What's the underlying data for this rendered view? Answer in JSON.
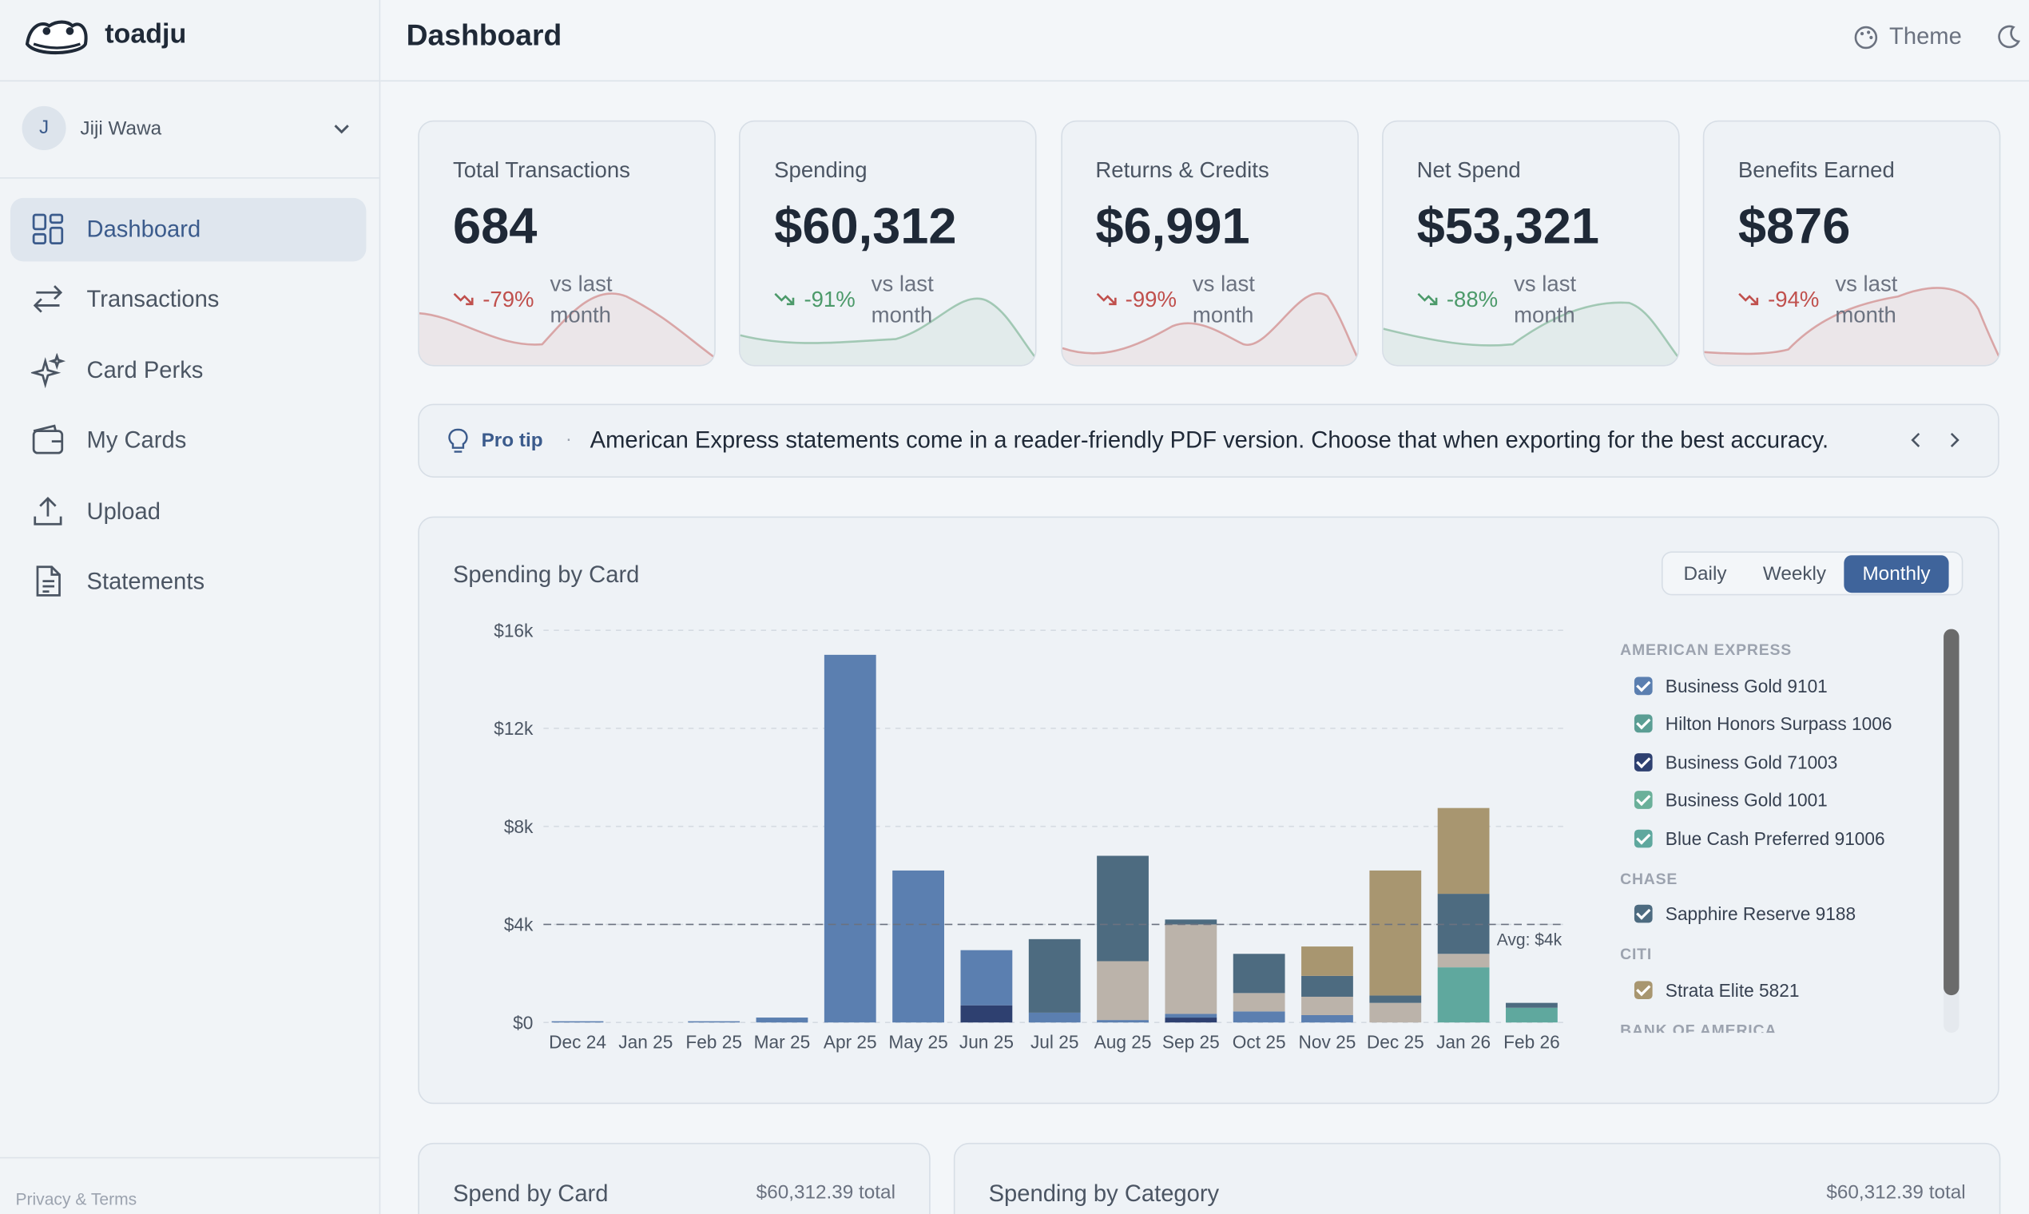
{
  "brand": "toadju",
  "header": {
    "title": "Dashboard",
    "theme": "Theme"
  },
  "user": {
    "initial": "J",
    "name": "Jiji Wawa"
  },
  "nav": [
    "Dashboard",
    "Transactions",
    "Card Perks",
    "My Cards",
    "Upload",
    "Statements"
  ],
  "footer": "Privacy & Terms",
  "kpis": [
    {
      "label": "Total Transactions",
      "value": "684",
      "change": "-79%",
      "note": "vs last month",
      "color": "#c0504d"
    },
    {
      "label": "Spending",
      "value": "$60,312",
      "change": "-91%",
      "note": "vs last month",
      "color": "#4c9a6a"
    },
    {
      "label": "Returns & Credits",
      "value": "$6,991",
      "change": "-99%",
      "note": "vs last month",
      "color": "#c0504d"
    },
    {
      "label": "Net Spend",
      "value": "$53,321",
      "change": "-88%",
      "note": "vs last month",
      "color": "#4c9a6a"
    },
    {
      "label": "Benefits Earned",
      "value": "$876",
      "change": "-94%",
      "note": "vs last month",
      "color": "#c0504d"
    }
  ],
  "tip": {
    "label": "Pro tip",
    "text": "American Express statements come in a reader-friendly PDF version. Choose that when exporting for the best accuracy."
  },
  "chart_data": {
    "type": "bar",
    "stacked": true,
    "title": "Spending by Card",
    "toggles": [
      "Daily",
      "Weekly",
      "Monthly"
    ],
    "selected_toggle": 2,
    "categories": [
      "Dec 24",
      "Jan 25",
      "Feb 25",
      "Mar 25",
      "Apr 25",
      "May 25",
      "Jun 25",
      "Jul 25",
      "Aug 25",
      "Sep 25",
      "Oct 25",
      "Nov 25",
      "Dec 25",
      "Jan 26",
      "Feb 26"
    ],
    "ylim": [
      0,
      16000
    ],
    "yticks": [
      {
        "value": 0,
        "label": "$0"
      },
      {
        "value": 4000,
        "label": "$4k"
      },
      {
        "value": 8000,
        "label": "$8k"
      },
      {
        "value": 12000,
        "label": "$12k"
      },
      {
        "value": 16000,
        "label": "$16k"
      }
    ],
    "grid": true,
    "average": {
      "value": 4000,
      "label": "Avg: $4k"
    },
    "series": [
      {
        "group": "AMERICAN EXPRESS",
        "name": "Business Gold 9101",
        "color": "#5b7fb0",
        "values": [
          50,
          0,
          50,
          200,
          15000,
          6200,
          2250,
          400,
          100,
          150,
          450,
          300,
          0,
          0,
          0
        ]
      },
      {
        "group": "AMERICAN EXPRESS",
        "name": "Hilton Honors Surpass 1006",
        "color": "#5b9e94",
        "values": [
          0,
          0,
          0,
          0,
          0,
          0,
          0,
          0,
          0,
          0,
          0,
          0,
          0,
          0,
          0
        ]
      },
      {
        "group": "AMERICAN EXPRESS",
        "name": "Business Gold 71003",
        "color": "#2e4070",
        "values": [
          0,
          0,
          0,
          0,
          0,
          0,
          700,
          0,
          0,
          200,
          0,
          0,
          0,
          0,
          0
        ]
      },
      {
        "group": "AMERICAN EXPRESS",
        "name": "Business Gold 1001",
        "color": "#6bb09a",
        "values": [
          0,
          0,
          0,
          0,
          0,
          0,
          0,
          0,
          0,
          0,
          0,
          0,
          0,
          0,
          0
        ]
      },
      {
        "group": "AMERICAN EXPRESS",
        "name": "Blue Cash Preferred 91006",
        "color": "#5fa89e",
        "values": [
          0,
          0,
          0,
          0,
          0,
          0,
          0,
          0,
          0,
          0,
          0,
          0,
          0,
          2250,
          600
        ]
      },
      {
        "group": "CHASE",
        "name": "Sapphire Reserve 9188",
        "color": "#4d6b80",
        "values": [
          0,
          0,
          0,
          0,
          0,
          0,
          0,
          3000,
          4300,
          200,
          1600,
          850,
          300,
          2450,
          200
        ]
      },
      {
        "group": "CITI",
        "name": "Strata Elite 5821",
        "color": "#a89670",
        "values": [
          0,
          0,
          0,
          0,
          0,
          0,
          0,
          0,
          0,
          0,
          0,
          1200,
          5100,
          3500,
          0
        ]
      },
      {
        "group": "BANK OF AMERICA",
        "color": "#bbb3aa",
        "values": [
          0,
          0,
          0,
          0,
          0,
          0,
          0,
          0,
          2400,
          3650,
          750,
          750,
          800,
          550,
          0
        ]
      }
    ]
  },
  "cards": [
    {
      "title": "Spend by Card",
      "total": "$60,312.39 total"
    },
    {
      "title": "Spending by Category",
      "total": "$60,312.39 total"
    }
  ]
}
